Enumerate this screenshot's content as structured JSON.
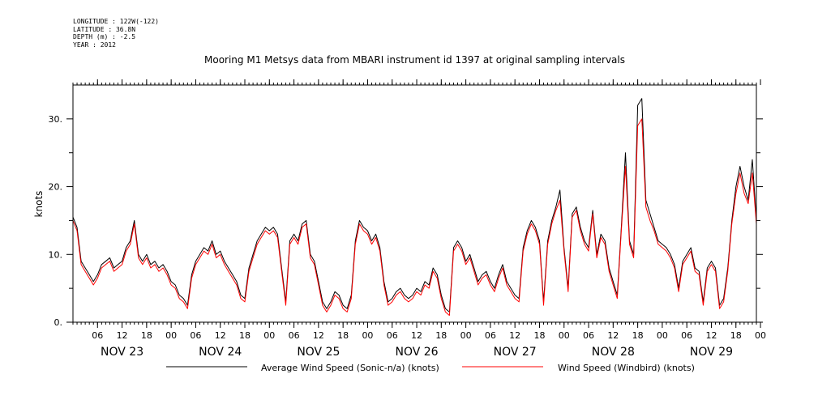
{
  "meta": {
    "longitude": "LONGITUDE : 122W(-122)",
    "latitude": "LATITUDE : 36.8N",
    "depth": "DEPTH (m) : -2.5",
    "year": "YEAR : 2012"
  },
  "chart_data": {
    "type": "line",
    "title": "Mooring M1 Metsys data from MBARI instrument id 1397 at original sampling intervals",
    "ylabel": "knots",
    "xlabel": "",
    "xlim": [
      0,
      167
    ],
    "ylim": [
      0,
      35
    ],
    "y_ticks": [
      0,
      10,
      20,
      30
    ],
    "y_tick_labels": [
      "0.",
      "10.",
      "20.",
      "30."
    ],
    "hour_ticks": [
      {
        "t": 6,
        "label": "06"
      },
      {
        "t": 12,
        "label": "12"
      },
      {
        "t": 18,
        "label": "18"
      },
      {
        "t": 24,
        "label": "00"
      },
      {
        "t": 30,
        "label": "06"
      },
      {
        "t": 36,
        "label": "12"
      },
      {
        "t": 42,
        "label": "18"
      },
      {
        "t": 48,
        "label": "00"
      },
      {
        "t": 54,
        "label": "06"
      },
      {
        "t": 60,
        "label": "12"
      },
      {
        "t": 66,
        "label": "18"
      },
      {
        "t": 72,
        "label": "00"
      },
      {
        "t": 78,
        "label": "06"
      },
      {
        "t": 84,
        "label": "12"
      },
      {
        "t": 90,
        "label": "18"
      },
      {
        "t": 96,
        "label": "00"
      },
      {
        "t": 102,
        "label": "06"
      },
      {
        "t": 108,
        "label": "12"
      },
      {
        "t": 114,
        "label": "18"
      },
      {
        "t": 120,
        "label": "00"
      },
      {
        "t": 126,
        "label": "06"
      },
      {
        "t": 132,
        "label": "12"
      },
      {
        "t": 138,
        "label": "18"
      },
      {
        "t": 144,
        "label": "00"
      },
      {
        "t": 150,
        "label": "06"
      },
      {
        "t": 156,
        "label": "12"
      },
      {
        "t": 162,
        "label": "18"
      },
      {
        "t": 168,
        "label": "00"
      }
    ],
    "day_labels": [
      {
        "t": 12,
        "label": "NOV 23"
      },
      {
        "t": 36,
        "label": "NOV 24"
      },
      {
        "t": 60,
        "label": "NOV 25"
      },
      {
        "t": 84,
        "label": "NOV 26"
      },
      {
        "t": 108,
        "label": "NOV 27"
      },
      {
        "t": 132,
        "label": "NOV 28"
      },
      {
        "t": 156,
        "label": "NOV 29"
      }
    ],
    "series": [
      {
        "name": "Average Wind Speed (Sonic-n/a) (knots)",
        "color": "#000000",
        "x": [
          0,
          1,
          2,
          3,
          4,
          5,
          6,
          7,
          8,
          9,
          10,
          11,
          12,
          13,
          14,
          15,
          16,
          17,
          18,
          19,
          20,
          21,
          22,
          23,
          24,
          25,
          26,
          27,
          28,
          29,
          30,
          31,
          32,
          33,
          34,
          35,
          36,
          37,
          38,
          39,
          40,
          41,
          42,
          43,
          44,
          45,
          46,
          47,
          48,
          49,
          50,
          51,
          52,
          53,
          54,
          55,
          56,
          57,
          58,
          59,
          60,
          61,
          62,
          63,
          64,
          65,
          66,
          67,
          68,
          69,
          70,
          71,
          72,
          73,
          74,
          75,
          76,
          77,
          78,
          79,
          80,
          81,
          82,
          83,
          84,
          85,
          86,
          87,
          88,
          89,
          90,
          91,
          92,
          93,
          94,
          95,
          96,
          97,
          98,
          99,
          100,
          101,
          102,
          103,
          104,
          105,
          106,
          107,
          108,
          109,
          110,
          111,
          112,
          113,
          114,
          115,
          116,
          117,
          118,
          119,
          120,
          121,
          122,
          123,
          124,
          125,
          126,
          127,
          128,
          129,
          130,
          131,
          132,
          133,
          134,
          135,
          136,
          137,
          138,
          139,
          140,
          141,
          142,
          143,
          144,
          145,
          146,
          147,
          148,
          149,
          150,
          151,
          152,
          153,
          154,
          155,
          156,
          157,
          158,
          159,
          160,
          161,
          162,
          163,
          164,
          165,
          166,
          167
        ],
        "values": [
          15.5,
          14,
          9,
          8,
          7,
          6,
          7,
          8.5,
          9,
          9.5,
          8,
          8.5,
          9,
          11,
          12,
          15,
          10,
          9,
          10,
          8.5,
          9,
          8,
          8.5,
          7.5,
          6,
          5.5,
          4,
          3.5,
          2.5,
          7,
          9,
          10,
          11,
          10.5,
          12,
          10,
          10.5,
          9,
          8,
          7,
          6,
          4,
          3.5,
          8,
          10,
          12,
          13,
          14,
          13.5,
          14,
          13,
          8,
          3,
          12,
          13,
          12,
          14.5,
          15,
          10,
          9,
          6,
          3,
          2,
          3,
          4.5,
          4,
          2.5,
          2,
          4,
          12,
          15,
          14,
          13.5,
          12,
          13,
          11,
          6,
          3,
          3.5,
          4.5,
          5,
          4,
          3.5,
          4,
          5,
          4.5,
          6,
          5.5,
          8,
          7,
          4,
          2,
          1.5,
          11,
          12,
          11,
          9,
          10,
          8,
          6,
          7,
          7.5,
          6,
          5,
          7,
          8.5,
          6,
          5,
          4,
          3.5,
          11,
          13.5,
          15,
          14,
          12,
          3,
          12,
          15,
          17,
          19.5,
          11,
          5,
          16,
          17,
          14,
          12,
          11,
          16.5,
          10,
          13,
          12,
          8,
          6,
          4,
          14,
          25,
          12,
          10,
          32,
          33,
          18,
          16,
          14,
          12,
          11.5,
          11,
          10,
          8.5,
          5,
          9,
          10,
          11,
          8,
          7.5,
          3,
          8,
          9,
          8,
          2.5,
          3.5,
          8,
          15,
          20,
          23,
          20,
          18,
          24,
          15
        ]
      },
      {
        "name": "Wind Speed (Windbird) (knots)",
        "color": "#ff0000",
        "x": [
          0,
          1,
          2,
          3,
          4,
          5,
          6,
          7,
          8,
          9,
          10,
          11,
          12,
          13,
          14,
          15,
          16,
          17,
          18,
          19,
          20,
          21,
          22,
          23,
          24,
          25,
          26,
          27,
          28,
          29,
          30,
          31,
          32,
          33,
          34,
          35,
          36,
          37,
          38,
          39,
          40,
          41,
          42,
          43,
          44,
          45,
          46,
          47,
          48,
          49,
          50,
          51,
          52,
          53,
          54,
          55,
          56,
          57,
          58,
          59,
          60,
          61,
          62,
          63,
          64,
          65,
          66,
          67,
          68,
          69,
          70,
          71,
          72,
          73,
          74,
          75,
          76,
          77,
          78,
          79,
          80,
          81,
          82,
          83,
          84,
          85,
          86,
          87,
          88,
          89,
          90,
          91,
          92,
          93,
          94,
          95,
          96,
          97,
          98,
          99,
          100,
          101,
          102,
          103,
          104,
          105,
          106,
          107,
          108,
          109,
          110,
          111,
          112,
          113,
          114,
          115,
          116,
          117,
          118,
          119,
          120,
          121,
          122,
          123,
          124,
          125,
          126,
          127,
          128,
          129,
          130,
          131,
          132,
          133,
          134,
          135,
          136,
          137,
          138,
          139,
          140,
          141,
          142,
          143,
          144,
          145,
          146,
          147,
          148,
          149,
          150,
          151,
          152,
          153,
          154,
          155,
          156,
          157,
          158,
          159,
          160,
          161,
          162,
          163,
          164,
          165,
          166,
          167
        ],
        "values": [
          15,
          13.5,
          8.5,
          7.5,
          6.5,
          5.5,
          6.5,
          8,
          8.5,
          9,
          7.5,
          8,
          8.5,
          10.5,
          11.5,
          14.5,
          9.5,
          8.5,
          9.5,
          8,
          8.5,
          7.5,
          8,
          7,
          5.5,
          5,
          3.5,
          3,
          2,
          6.5,
          8.5,
          9.5,
          10.5,
          10,
          11.5,
          9.5,
          10,
          8.5,
          7.5,
          6.5,
          5.5,
          3.5,
          3,
          7.5,
          9.5,
          11.5,
          12.5,
          13.5,
          13,
          13.5,
          12.5,
          7.5,
          2.5,
          11.5,
          12.5,
          11.5,
          14,
          14.5,
          9.5,
          8.5,
          5.5,
          2.5,
          1.5,
          2.5,
          4,
          3.5,
          2,
          1.5,
          3.5,
          11.5,
          14.5,
          13.5,
          13,
          11.5,
          12.5,
          10.5,
          5.5,
          2.5,
          3,
          4,
          4.5,
          3.5,
          3,
          3.5,
          4.5,
          4,
          5.5,
          5,
          7.5,
          6.5,
          3.5,
          1.5,
          1,
          10.5,
          11.5,
          10.5,
          8.5,
          9.5,
          7.5,
          5.5,
          6.5,
          7,
          5.5,
          4.5,
          6.5,
          8,
          5.5,
          4.5,
          3.5,
          3,
          10.5,
          13,
          14.5,
          13.5,
          11.5,
          2.5,
          11.5,
          14.5,
          16.5,
          18,
          10.5,
          4.5,
          15.5,
          16.5,
          13.5,
          11.5,
          10.5,
          16,
          9.5,
          12.5,
          11.5,
          7.5,
          5.5,
          3.5,
          13.5,
          23,
          11.5,
          9.5,
          29,
          30,
          17,
          15,
          13.5,
          11.5,
          11,
          10.5,
          9.5,
          8,
          4.5,
          8.5,
          9.5,
          10.5,
          7.5,
          7,
          2.5,
          7.5,
          8.5,
          7.5,
          2,
          3,
          7.5,
          14.5,
          19,
          22,
          19,
          17.5,
          22,
          14.5
        ]
      }
    ]
  }
}
